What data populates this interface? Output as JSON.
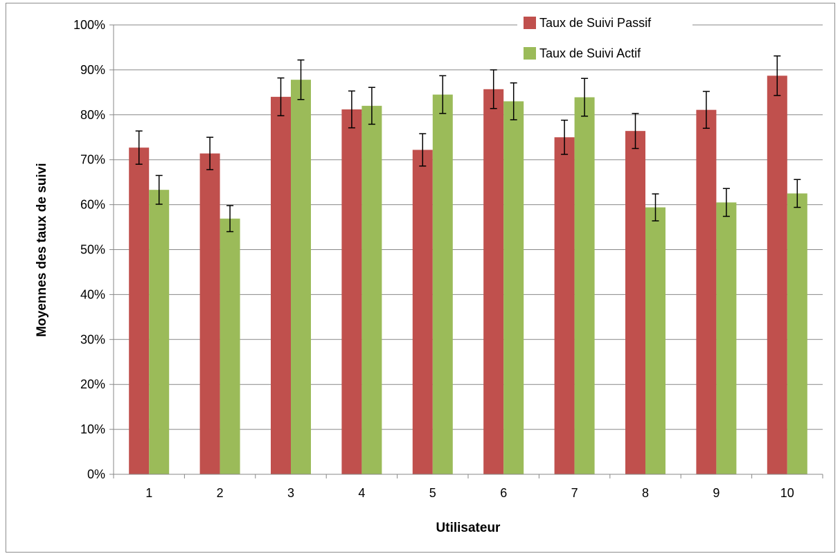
{
  "chart_data": {
    "type": "bar",
    "title": "",
    "xlabel": "Utilisateur",
    "ylabel": "Moyennes des taux de suivi",
    "ylim": [
      0,
      1
    ],
    "y_ticks": [
      "0%",
      "10%",
      "20%",
      "30%",
      "40%",
      "50%",
      "60%",
      "70%",
      "80%",
      "90%",
      "100%"
    ],
    "categories": [
      "1",
      "2",
      "3",
      "4",
      "5",
      "6",
      "7",
      "8",
      "9",
      "10"
    ],
    "grid": true,
    "legend_position": "top-right",
    "series": [
      {
        "name": "Taux de Suivi Passif",
        "color": "#c0504d",
        "values": [
          0.727,
          0.714,
          0.84,
          0.812,
          0.722,
          0.857,
          0.75,
          0.764,
          0.811,
          0.887
        ],
        "error": [
          0.037,
          0.036,
          0.042,
          0.041,
          0.036,
          0.043,
          0.038,
          0.039,
          0.041,
          0.044
        ]
      },
      {
        "name": "Taux de Suivi Actif",
        "color": "#9bbb59",
        "values": [
          0.633,
          0.569,
          0.878,
          0.82,
          0.845,
          0.83,
          0.839,
          0.594,
          0.605,
          0.625
        ],
        "error": [
          0.032,
          0.029,
          0.044,
          0.041,
          0.042,
          0.041,
          0.042,
          0.03,
          0.031,
          0.031
        ]
      }
    ]
  }
}
